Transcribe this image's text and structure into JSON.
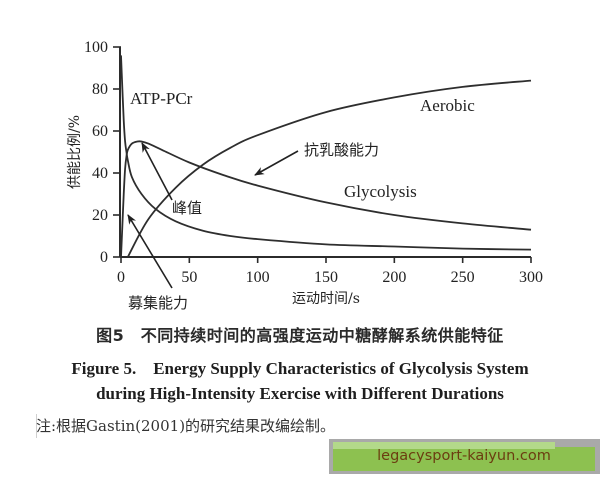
{
  "chart_data": {
    "type": "line",
    "title": "",
    "xlabel": "运动时间/s",
    "ylabel": "供能比例/%",
    "xlim": [
      0,
      300
    ],
    "ylim": [
      0,
      100
    ],
    "x_ticks": [
      0,
      50,
      100,
      150,
      200,
      250,
      300
    ],
    "y_ticks": [
      0,
      20,
      40,
      60,
      80,
      100
    ],
    "grid": false,
    "legend": "none (curves labeled inline)",
    "series": [
      {
        "name": "ATP-PCr",
        "x": [
          0,
          1,
          2,
          3,
          4,
          5,
          8,
          15,
          25,
          40,
          60,
          80,
          100,
          150,
          200,
          250,
          300
        ],
        "y": [
          96,
          80,
          65,
          55,
          50,
          46,
          38,
          30,
          23,
          17,
          12.5,
          10,
          8.5,
          6,
          5,
          4,
          3.5
        ]
      },
      {
        "name": "Glycolysis",
        "x": [
          0,
          1,
          2,
          3,
          4,
          5,
          8,
          12,
          15,
          20,
          30,
          50,
          75,
          100,
          150,
          200,
          250,
          300
        ],
        "y": [
          0,
          15,
          30,
          42,
          48,
          51,
          54,
          55,
          55,
          54,
          51,
          45,
          39,
          34,
          26,
          20,
          16,
          13
        ]
      },
      {
        "name": "Aerobic",
        "x": [
          5,
          20,
          40,
          60,
          80,
          100,
          150,
          200,
          250,
          300
        ],
        "y": [
          0,
          18,
          33,
          44,
          52,
          58,
          69,
          76,
          81,
          84
        ]
      }
    ],
    "annotations": [
      {
        "text": "ATP-PCr",
        "x": 8,
        "y": 80
      },
      {
        "text": "Aerobic",
        "x": 220,
        "y": 84
      },
      {
        "text": "Glycolysis",
        "x": 195,
        "y": 31
      },
      {
        "text": "抗乳酸能力",
        "x": 170,
        "y": 52,
        "arrow_to": [
          102,
          38
        ]
      },
      {
        "text": "峰值",
        "x": 40,
        "y": 23,
        "arrow_to": [
          15,
          55
        ]
      },
      {
        "text": "募集能力",
        "x": 40,
        "y": -20,
        "arrow_to": [
          5,
          22
        ]
      }
    ]
  },
  "axes": {
    "x_tick_labels": [
      "0",
      "50",
      "100",
      "150",
      "200",
      "250",
      "300"
    ],
    "y_tick_labels": [
      "0",
      "20",
      "40",
      "60",
      "80",
      "100"
    ]
  },
  "caption": {
    "cn": "图5　不同持续时间的高强度运动中糖酵解系统供能特征",
    "en_line1": "Figure 5.　Energy Supply Characteristics of Glycolysis System",
    "en_line2": "during High-Intensity Exercise with Different Durations"
  },
  "note": "注:根据Gastin(2001)的研究结果改编绘制。",
  "watermark": {
    "text": "legacysport-kaiyun.com",
    "bg_color": "#8dc150",
    "text_color": "#6b3d10"
  }
}
